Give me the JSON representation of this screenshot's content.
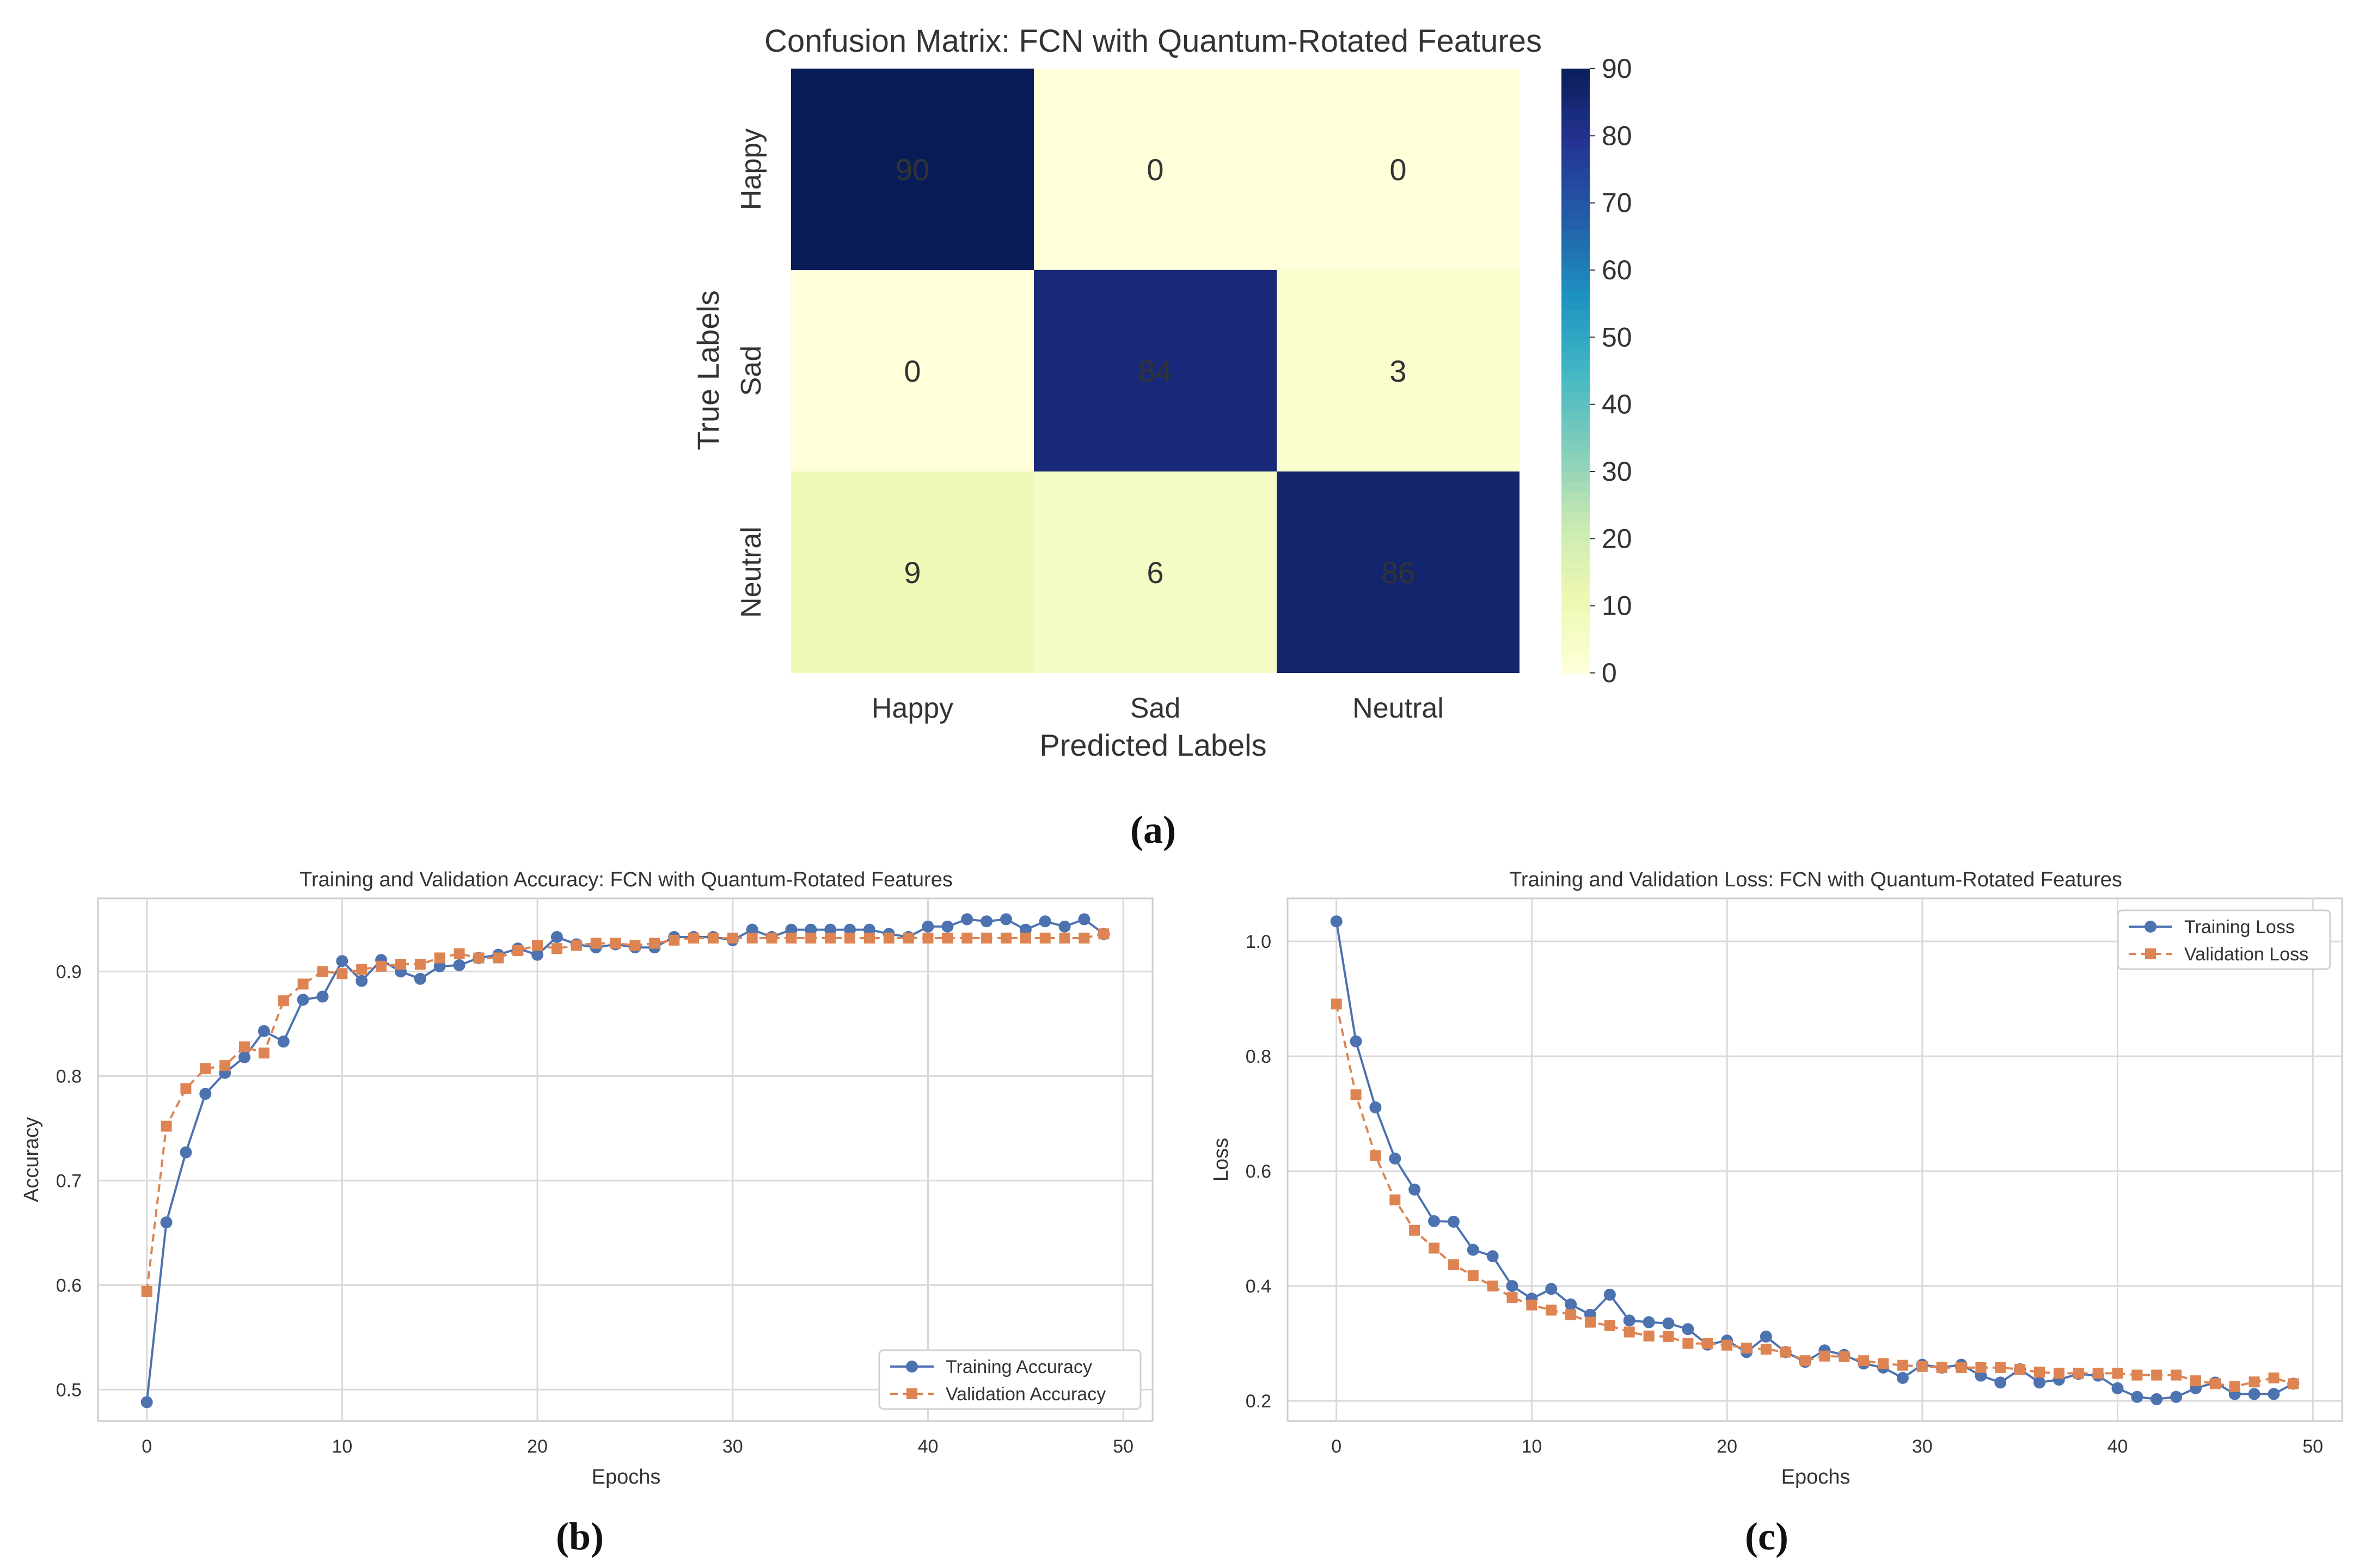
{
  "panel_labels": {
    "a": "(a)",
    "b": "(b)",
    "c": "(c)"
  },
  "colors": {
    "train": "#4C72B0",
    "val": "#DD8452",
    "grid": "#d9d9d9",
    "colormap_stops": [
      "#ffffd9",
      "#edf8b1",
      "#c7e9b4",
      "#7fcdbb",
      "#41b6c4",
      "#1d91c0",
      "#225ea8",
      "#253494",
      "#081d58"
    ]
  },
  "chart_data": [
    {
      "type": "heatmap",
      "title": "Confusion Matrix: FCN with Quantum-Rotated Features",
      "xlabel": "Predicted Labels",
      "ylabel": "True Labels",
      "x_categories": [
        "Happy",
        "Sad",
        "Neutral"
      ],
      "y_categories": [
        "Happy",
        "Sad",
        "Neutral"
      ],
      "values": [
        [
          90,
          0,
          0
        ],
        [
          0,
          84,
          3
        ],
        [
          9,
          6,
          86
        ]
      ],
      "colorbar": {
        "min": 0,
        "max": 90,
        "ticks": [
          "0",
          "10",
          "20",
          "30",
          "40",
          "50",
          "60",
          "70",
          "80",
          "90"
        ]
      }
    },
    {
      "type": "line",
      "title": "Training and Validation Accuracy: FCN with Quantum-Rotated Features",
      "xlabel": "Epochs",
      "ylabel": "Accuracy",
      "xlim": [
        -2.5,
        51.5
      ],
      "ylim": [
        0.47,
        0.97
      ],
      "xticks": [
        "0",
        "10",
        "20",
        "30",
        "40",
        "50"
      ],
      "yticks": [
        "0.5",
        "0.6",
        "0.7",
        "0.8",
        "0.9"
      ],
      "legend_position": "bottom-right",
      "series": [
        {
          "name": "Training Accuracy",
          "x": [
            0,
            1,
            2,
            3,
            4,
            5,
            6,
            7,
            8,
            9,
            10,
            11,
            12,
            13,
            14,
            15,
            16,
            17,
            18,
            19,
            20,
            21,
            22,
            23,
            24,
            25,
            26,
            27,
            28,
            29,
            30,
            31,
            32,
            33,
            34,
            35,
            36,
            37,
            38,
            39,
            40,
            41,
            42,
            43,
            44,
            45,
            46,
            47,
            48,
            49
          ],
          "values": [
            0.488,
            0.66,
            0.727,
            0.783,
            0.803,
            0.818,
            0.843,
            0.833,
            0.873,
            0.876,
            0.91,
            0.891,
            0.911,
            0.9,
            0.893,
            0.905,
            0.906,
            0.913,
            0.916,
            0.922,
            0.916,
            0.933,
            0.926,
            0.923,
            0.926,
            0.923,
            0.923,
            0.933,
            0.933,
            0.933,
            0.93,
            0.94,
            0.933,
            0.94,
            0.94,
            0.94,
            0.94,
            0.94,
            0.936,
            0.933,
            0.943,
            0.943,
            0.95,
            0.948,
            0.95,
            0.94,
            0.948,
            0.943,
            0.95,
            0.936
          ]
        },
        {
          "name": "Validation Accuracy",
          "x": [
            0,
            1,
            2,
            3,
            4,
            5,
            6,
            7,
            8,
            9,
            10,
            11,
            12,
            13,
            14,
            15,
            16,
            17,
            18,
            19,
            20,
            21,
            22,
            23,
            24,
            25,
            26,
            27,
            28,
            29,
            30,
            31,
            32,
            33,
            34,
            35,
            36,
            37,
            38,
            39,
            40,
            41,
            42,
            43,
            44,
            45,
            46,
            47,
            48,
            49
          ],
          "values": [
            0.594,
            0.752,
            0.788,
            0.807,
            0.81,
            0.828,
            0.822,
            0.872,
            0.888,
            0.9,
            0.898,
            0.902,
            0.905,
            0.907,
            0.907,
            0.913,
            0.917,
            0.913,
            0.913,
            0.92,
            0.925,
            0.922,
            0.925,
            0.927,
            0.927,
            0.925,
            0.927,
            0.93,
            0.932,
            0.932,
            0.932,
            0.932,
            0.932,
            0.932,
            0.932,
            0.932,
            0.932,
            0.932,
            0.932,
            0.932,
            0.932,
            0.932,
            0.932,
            0.932,
            0.932,
            0.932,
            0.932,
            0.932,
            0.932,
            0.936
          ]
        }
      ]
    },
    {
      "type": "line",
      "title": "Training and Validation Loss: FCN with Quantum-Rotated Features",
      "xlabel": "Epochs",
      "ylabel": "Loss",
      "xlim": [
        -2.5,
        51.5
      ],
      "ylim": [
        0.165,
        1.075
      ],
      "xticks": [
        "0",
        "10",
        "20",
        "30",
        "40",
        "50"
      ],
      "yticks": [
        "0.2",
        "0.4",
        "0.6",
        "0.8",
        "1.0"
      ],
      "legend_position": "top-right",
      "series": [
        {
          "name": "Training Loss",
          "x": [
            0,
            1,
            2,
            3,
            4,
            5,
            6,
            7,
            8,
            9,
            10,
            11,
            12,
            13,
            14,
            15,
            16,
            17,
            18,
            19,
            20,
            21,
            22,
            23,
            24,
            25,
            26,
            27,
            28,
            29,
            30,
            31,
            32,
            33,
            34,
            35,
            36,
            37,
            38,
            39,
            40,
            41,
            42,
            43,
            44,
            45,
            46,
            47,
            48,
            49
          ],
          "values": [
            1.035,
            0.826,
            0.711,
            0.622,
            0.568,
            0.513,
            0.512,
            0.463,
            0.452,
            0.4,
            0.378,
            0.395,
            0.368,
            0.35,
            0.385,
            0.34,
            0.337,
            0.335,
            0.325,
            0.298,
            0.305,
            0.285,
            0.312,
            0.285,
            0.268,
            0.288,
            0.28,
            0.265,
            0.258,
            0.24,
            0.263,
            0.258,
            0.263,
            0.244,
            0.232,
            0.255,
            0.232,
            0.237,
            0.247,
            0.244,
            0.222,
            0.207,
            0.203,
            0.207,
            0.222,
            0.232,
            0.212,
            0.212,
            0.212,
            0.23
          ]
        },
        {
          "name": "Validation Loss",
          "x": [
            0,
            1,
            2,
            3,
            4,
            5,
            6,
            7,
            8,
            9,
            10,
            11,
            12,
            13,
            14,
            15,
            16,
            17,
            18,
            19,
            20,
            21,
            22,
            23,
            24,
            25,
            26,
            27,
            28,
            29,
            30,
            31,
            32,
            33,
            34,
            35,
            36,
            37,
            38,
            39,
            40,
            41,
            42,
            43,
            44,
            45,
            46,
            47,
            48,
            49
          ],
          "values": [
            0.891,
            0.733,
            0.627,
            0.55,
            0.497,
            0.466,
            0.437,
            0.418,
            0.4,
            0.38,
            0.367,
            0.358,
            0.35,
            0.337,
            0.331,
            0.32,
            0.313,
            0.312,
            0.3,
            0.3,
            0.297,
            0.292,
            0.29,
            0.285,
            0.27,
            0.278,
            0.277,
            0.27,
            0.265,
            0.262,
            0.26,
            0.258,
            0.258,
            0.258,
            0.258,
            0.255,
            0.25,
            0.248,
            0.248,
            0.248,
            0.248,
            0.245,
            0.245,
            0.245,
            0.235,
            0.23,
            0.225,
            0.233,
            0.24,
            0.23
          ]
        }
      ]
    }
  ]
}
